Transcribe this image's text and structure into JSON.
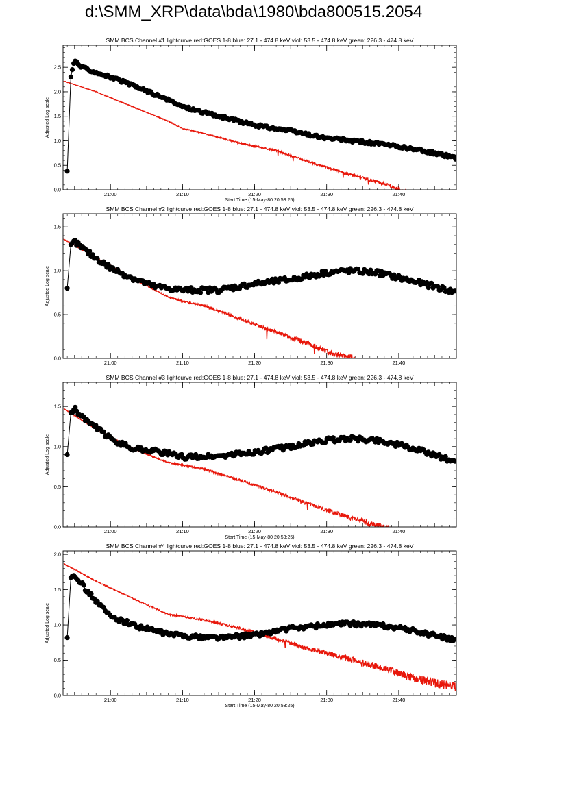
{
  "page": {
    "title": "d:\\SMM_XRP\\data\\bda\\1980\\bda800515.2054"
  },
  "colors": {
    "goes": "#e8170b",
    "bcs": "#000000",
    "axes": "#000000"
  },
  "chart_data": [
    {
      "type": "line",
      "title": "SMM BCS Channel #1 lightcurve  red:GOES 1-8  blue: 27.1 - 474.8 keV  viol: 53.5 - 474.8 keV  green: 226.3 - 474.8 keV",
      "xlabel": "Start Time (15-May-80 20:53:25)",
      "ylabel": "Adjusted Log scale",
      "xlim": [
        "20:53:25",
        "21:48:00"
      ],
      "xticks": [
        "21:00",
        "21:10",
        "21:20",
        "21:30",
        "21:40"
      ],
      "ylim": [
        0,
        2.95
      ],
      "yticks": [
        "0.0",
        "0.5",
        "1.0",
        "1.5",
        "2.0",
        "2.5"
      ],
      "series": [
        {
          "color": "#e8170b",
          "x": [
            "20:53:30",
            "20:58",
            "21:03",
            "21:08",
            "21:10",
            "21:13",
            "21:18",
            "21:23",
            "21:28",
            "21:33",
            "21:38",
            "21:42"
          ],
          "y": [
            2.22,
            2.0,
            1.7,
            1.4,
            1.25,
            1.15,
            0.95,
            0.8,
            0.55,
            0.32,
            0.12,
            -0.1
          ]
        },
        {
          "color": "#000000",
          "x": [
            "20:54:00",
            "20:54:30",
            "20:55:00",
            "20:56:00",
            "21:00",
            "21:05",
            "21:10",
            "21:15",
            "21:20",
            "21:25",
            "21:30",
            "21:35",
            "21:40",
            "21:45",
            "21:48"
          ],
          "y": [
            0.38,
            2.3,
            2.65,
            2.5,
            2.3,
            2.02,
            1.7,
            1.5,
            1.32,
            1.2,
            1.05,
            0.98,
            0.88,
            0.75,
            0.65
          ]
        }
      ]
    },
    {
      "type": "line",
      "title": "SMM BCS Channel #2 lightcurve  red:GOES 1-8  blue: 27.1 - 474.8 keV  viol: 53.5 - 474.8 keV  green: 226.3 - 474.8 keV",
      "xlabel": "",
      "ylabel": "Adjusted Log scale",
      "xlim": [
        "20:53:25",
        "21:48:00"
      ],
      "xticks": [
        "21:00",
        "21:10",
        "21:20",
        "21:30",
        "21:40"
      ],
      "ylim": [
        0,
        1.65
      ],
      "yticks": [
        "0.0",
        "0.5",
        "1.0",
        "1.5"
      ],
      "series": [
        {
          "color": "#e8170b",
          "x": [
            "20:53:30",
            "20:58",
            "21:03",
            "21:08",
            "21:10",
            "21:13",
            "21:18",
            "21:23",
            "21:28",
            "21:31",
            "21:34"
          ],
          "y": [
            1.36,
            1.15,
            0.92,
            0.7,
            0.65,
            0.6,
            0.45,
            0.3,
            0.15,
            0.05,
            0.0
          ]
        },
        {
          "color": "#000000",
          "x": [
            "20:54:00",
            "20:54:30",
            "20:55:00",
            "20:57:00",
            "21:00",
            "21:03",
            "21:06",
            "21:10",
            "21:15",
            "21:20",
            "21:25",
            "21:30",
            "21:33",
            "21:37",
            "21:40",
            "21:45",
            "21:48"
          ],
          "y": [
            0.8,
            1.28,
            1.33,
            1.2,
            1.03,
            0.92,
            0.82,
            0.78,
            0.78,
            0.85,
            0.9,
            0.98,
            1.0,
            0.98,
            0.92,
            0.82,
            0.75
          ]
        }
      ]
    },
    {
      "type": "line",
      "title": "SMM BCS Channel #3 lightcurve  red:GOES 1-8  blue: 27.1 - 474.8 keV  viol: 53.5 - 474.8 keV  green: 226.3 - 474.8 keV",
      "xlabel": "Start Time (15-May-80 20:53:25)",
      "ylabel": "Adjusted Log scale",
      "xlim": [
        "20:53:25",
        "21:48:00"
      ],
      "xticks": [
        "21:00",
        "21:10",
        "21:20",
        "21:30",
        "21:40"
      ],
      "ylim": [
        0,
        1.8
      ],
      "yticks": [
        "0.0",
        "0.5",
        "1.0",
        "1.5"
      ],
      "series": [
        {
          "color": "#e8170b",
          "x": [
            "20:53:30",
            "20:58",
            "21:03",
            "21:08",
            "21:10",
            "21:13",
            "21:18",
            "21:23",
            "21:28",
            "21:33",
            "21:37",
            "21:39"
          ],
          "y": [
            1.47,
            1.22,
            0.98,
            0.8,
            0.77,
            0.72,
            0.58,
            0.43,
            0.27,
            0.12,
            0.02,
            -0.03
          ]
        },
        {
          "color": "#000000",
          "x": [
            "20:54:00",
            "20:54:30",
            "20:55:00",
            "20:57:00",
            "21:00",
            "21:03",
            "21:06",
            "21:10",
            "21:15",
            "21:20",
            "21:25",
            "21:30",
            "21:33",
            "21:37",
            "21:40",
            "21:45",
            "21:48"
          ],
          "y": [
            0.9,
            1.42,
            1.47,
            1.3,
            1.1,
            0.98,
            0.95,
            0.87,
            0.88,
            0.93,
            1.0,
            1.08,
            1.1,
            1.08,
            1.02,
            0.9,
            0.8
          ]
        }
      ]
    },
    {
      "type": "line",
      "title": "SMM BCS Channel #4 lightcurve  red:GOES 1-8  blue: 27.1 - 474.8 keV  viol: 53.5 - 474.8 keV  green: 226.3 - 474.8 keV",
      "xlabel": "Start Time (15-May-80 20:53:25)",
      "ylabel": "Adjusted Log scale",
      "xlim": [
        "20:53:25",
        "21:48:00"
      ],
      "xticks": [
        "21:00",
        "21:10",
        "21:20",
        "21:30",
        "21:40"
      ],
      "ylim": [
        0,
        2.05
      ],
      "yticks": [
        "0.0",
        "0.5",
        "1.0",
        "1.5",
        "2.0"
      ],
      "series": [
        {
          "color": "#e8170b",
          "x": [
            "20:53:30",
            "20:58",
            "21:03",
            "21:08",
            "21:10",
            "21:13",
            "21:18",
            "21:23",
            "21:28",
            "21:33",
            "21:38",
            "21:42",
            "21:45",
            "21:48"
          ],
          "y": [
            1.87,
            1.62,
            1.38,
            1.15,
            1.12,
            1.07,
            0.95,
            0.8,
            0.65,
            0.52,
            0.38,
            0.25,
            0.18,
            0.12
          ]
        },
        {
          "color": "#000000",
          "x": [
            "20:54:00",
            "20:54:30",
            "20:55:00",
            "20:57:00",
            "21:00",
            "21:04",
            "21:08",
            "21:12",
            "21:16",
            "21:20",
            "21:25",
            "21:30",
            "21:33",
            "21:37",
            "21:40",
            "21:45",
            "21:48"
          ],
          "y": [
            0.82,
            1.68,
            1.72,
            1.45,
            1.12,
            0.97,
            0.87,
            0.83,
            0.82,
            0.86,
            0.95,
            1.0,
            1.02,
            1.0,
            0.96,
            0.85,
            0.78
          ]
        }
      ]
    }
  ]
}
